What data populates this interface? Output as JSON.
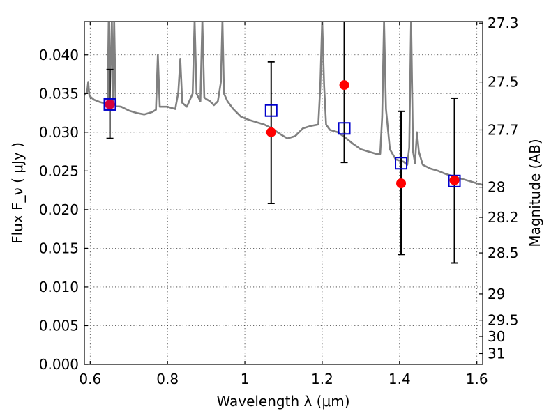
{
  "chart_data": {
    "type": "scatter",
    "title": "",
    "xlabel": "Wavelength  λ (μm)",
    "ylabel": "Flux  F_ν  ( μJy )",
    "y2label": "Magnitude (AB)",
    "xlim": [
      0.585,
      1.615
    ],
    "ylim": [
      0.0,
      0.0443
    ],
    "grid": true,
    "x_ticks": [
      {
        "v": 0.6,
        "t": "0.6"
      },
      {
        "v": 0.8,
        "t": "0.8"
      },
      {
        "v": 1.0,
        "t": "1"
      },
      {
        "v": 1.2,
        "t": "1.2"
      },
      {
        "v": 1.4,
        "t": "1.4"
      },
      {
        "v": 1.6,
        "t": "1.6"
      }
    ],
    "y_ticks": [
      {
        "v": 0.0,
        "t": "0.000"
      },
      {
        "v": 0.005,
        "t": "0.005"
      },
      {
        "v": 0.01,
        "t": "0.010"
      },
      {
        "v": 0.015,
        "t": "0.015"
      },
      {
        "v": 0.02,
        "t": "0.020"
      },
      {
        "v": 0.025,
        "t": "0.025"
      },
      {
        "v": 0.03,
        "t": "0.030"
      },
      {
        "v": 0.035,
        "t": "0.035"
      },
      {
        "v": 0.04,
        "t": "0.040"
      }
    ],
    "mag_ticks": [
      {
        "v": 0.0441,
        "t": "27.3"
      },
      {
        "v": 0.0365,
        "t": "27.5"
      },
      {
        "v": 0.0303,
        "t": "27.7"
      },
      {
        "v": 0.0229,
        "t": "28"
      },
      {
        "v": 0.019,
        "t": "28.2"
      },
      {
        "v": 0.0144,
        "t": "28.5"
      },
      {
        "v": 0.0091,
        "t": "29"
      },
      {
        "v": 0.0057,
        "t": "29.5"
      },
      {
        "v": 0.0036,
        "t": "30"
      },
      {
        "v": 0.0014,
        "t": "31"
      }
    ],
    "series": [
      {
        "kind": "model-spectrum",
        "color": "#808080",
        "points": [
          [
            0.585,
            0.0348
          ],
          [
            0.592,
            0.0352
          ],
          [
            0.595,
            0.0365
          ],
          [
            0.598,
            0.0347
          ],
          [
            0.61,
            0.0342
          ],
          [
            0.625,
            0.0339
          ],
          [
            0.64,
            0.0337
          ],
          [
            0.645,
            0.034
          ],
          [
            0.648,
            0.0445
          ],
          [
            0.65,
            0.0334
          ],
          [
            0.656,
            0.0445
          ],
          [
            0.659,
            0.0334
          ],
          [
            0.662,
            0.0445
          ],
          [
            0.666,
            0.0334
          ],
          [
            0.68,
            0.0333
          ],
          [
            0.7,
            0.0328
          ],
          [
            0.72,
            0.0325
          ],
          [
            0.74,
            0.0323
          ],
          [
            0.76,
            0.0326
          ],
          [
            0.77,
            0.0329
          ],
          [
            0.775,
            0.04
          ],
          [
            0.78,
            0.0333
          ],
          [
            0.8,
            0.0333
          ],
          [
            0.82,
            0.033
          ],
          [
            0.828,
            0.0352
          ],
          [
            0.833,
            0.0395
          ],
          [
            0.838,
            0.0338
          ],
          [
            0.85,
            0.0333
          ],
          [
            0.865,
            0.035
          ],
          [
            0.87,
            0.0445
          ],
          [
            0.875,
            0.035
          ],
          [
            0.885,
            0.034
          ],
          [
            0.89,
            0.0445
          ],
          [
            0.895,
            0.0345
          ],
          [
            0.9,
            0.0343
          ],
          [
            0.91,
            0.034
          ],
          [
            0.92,
            0.0335
          ],
          [
            0.93,
            0.034
          ],
          [
            0.938,
            0.0365
          ],
          [
            0.942,
            0.0445
          ],
          [
            0.946,
            0.035
          ],
          [
            0.955,
            0.034
          ],
          [
            0.97,
            0.033
          ],
          [
            0.99,
            0.032
          ],
          [
            1.01,
            0.0316
          ],
          [
            1.03,
            0.0313
          ],
          [
            1.05,
            0.031
          ],
          [
            1.07,
            0.0305
          ],
          [
            1.09,
            0.0298
          ],
          [
            1.11,
            0.0292
          ],
          [
            1.13,
            0.0295
          ],
          [
            1.15,
            0.0305
          ],
          [
            1.17,
            0.0308
          ],
          [
            1.19,
            0.031
          ],
          [
            1.195,
            0.036
          ],
          [
            1.2,
            0.0445
          ],
          [
            1.205,
            0.036
          ],
          [
            1.21,
            0.031
          ],
          [
            1.22,
            0.0303
          ],
          [
            1.24,
            0.03
          ],
          [
            1.26,
            0.0293
          ],
          [
            1.28,
            0.0285
          ],
          [
            1.3,
            0.0278
          ],
          [
            1.32,
            0.0275
          ],
          [
            1.34,
            0.0272
          ],
          [
            1.35,
            0.0272
          ],
          [
            1.355,
            0.032
          ],
          [
            1.36,
            0.0445
          ],
          [
            1.365,
            0.033
          ],
          [
            1.375,
            0.0278
          ],
          [
            1.39,
            0.0265
          ],
          [
            1.41,
            0.0262
          ],
          [
            1.42,
            0.0258
          ],
          [
            1.425,
            0.028
          ],
          [
            1.43,
            0.0445
          ],
          [
            1.435,
            0.0275
          ],
          [
            1.44,
            0.026
          ],
          [
            1.445,
            0.03
          ],
          [
            1.45,
            0.0275
          ],
          [
            1.46,
            0.0258
          ],
          [
            1.48,
            0.0253
          ],
          [
            1.5,
            0.025
          ],
          [
            1.52,
            0.0246
          ],
          [
            1.54,
            0.0243
          ],
          [
            1.56,
            0.024
          ],
          [
            1.58,
            0.0237
          ],
          [
            1.6,
            0.0234
          ],
          [
            1.615,
            0.0232
          ]
        ]
      },
      {
        "kind": "observed",
        "marker": "circle",
        "color": "#ff0000",
        "points": [
          {
            "x": 0.651,
            "y": 0.0336,
            "ylo": 0.0292,
            "yhi": 0.0381
          },
          {
            "x": 1.068,
            "y": 0.03,
            "ylo": 0.0208,
            "yhi": 0.0391
          },
          {
            "x": 1.257,
            "y": 0.0361,
            "ylo": 0.0261,
            "yhi": 0.046
          },
          {
            "x": 1.404,
            "y": 0.0234,
            "ylo": 0.0142,
            "yhi": 0.0327
          },
          {
            "x": 1.542,
            "y": 0.0238,
            "ylo": 0.0131,
            "yhi": 0.0344
          }
        ]
      },
      {
        "kind": "model-synthetic",
        "marker": "square",
        "color": "#0000cc",
        "points": [
          {
            "x": 0.651,
            "y": 0.0336
          },
          {
            "x": 1.068,
            "y": 0.0328
          },
          {
            "x": 1.257,
            "y": 0.0305
          },
          {
            "x": 1.404,
            "y": 0.026
          },
          {
            "x": 1.542,
            "y": 0.0237
          }
        ]
      }
    ]
  }
}
